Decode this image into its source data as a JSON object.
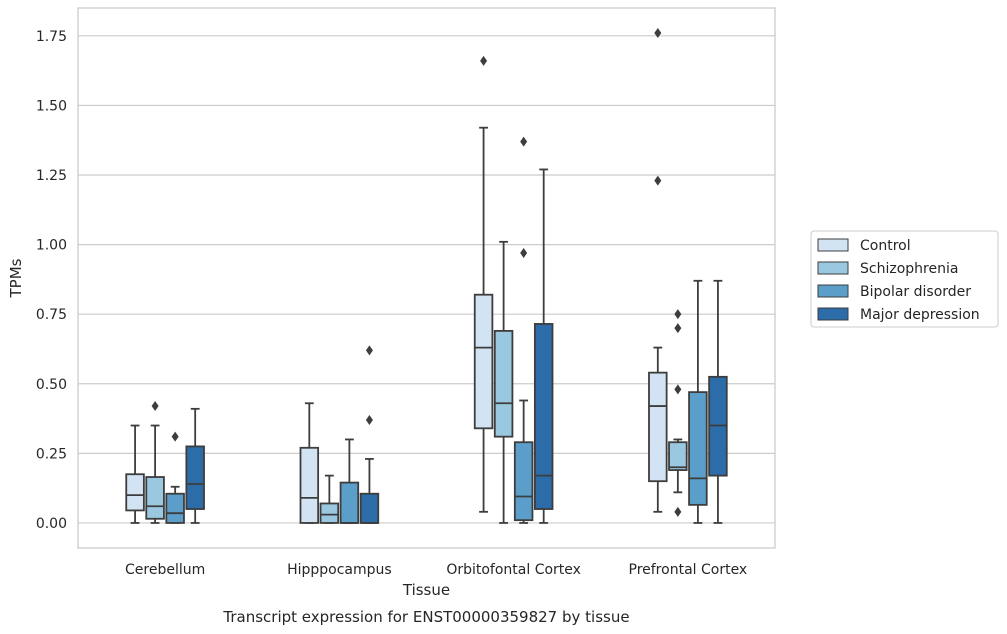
{
  "chart_data": {
    "type": "box",
    "title": "",
    "caption": "Transcript expression for ENST00000359827 by tissue",
    "xlabel": "Tissue",
    "ylabel": "TPMs",
    "ylim": [
      -0.09,
      1.85
    ],
    "yticks": [
      "0.00",
      "0.25",
      "0.50",
      "0.75",
      "1.00",
      "1.25",
      "1.50",
      "1.75"
    ],
    "grid": "horizontal",
    "legend_position": "right",
    "categories": [
      "Cerebellum",
      "Hipppocampus",
      "Orbitofontal Cortex",
      "Prefrontal Cortex"
    ],
    "series": [
      {
        "name": "Control",
        "color": "#d2e3f3",
        "boxes": [
          {
            "min": 0.0,
            "q1": 0.045,
            "median": 0.1,
            "q3": 0.175,
            "max": 0.35,
            "outliers": []
          },
          {
            "min": 0.0,
            "q1": 0.0,
            "median": 0.09,
            "q3": 0.27,
            "max": 0.43,
            "outliers": []
          },
          {
            "min": 0.04,
            "q1": 0.34,
            "median": 0.63,
            "q3": 0.82,
            "max": 1.42,
            "outliers": [
              1.66
            ]
          },
          {
            "min": 0.04,
            "q1": 0.15,
            "median": 0.42,
            "q3": 0.54,
            "max": 0.63,
            "outliers": [
              1.23,
              1.76
            ]
          }
        ]
      },
      {
        "name": "Schizophrenia",
        "color": "#9ac8e0",
        "boxes": [
          {
            "min": 0.0,
            "q1": 0.015,
            "median": 0.06,
            "q3": 0.165,
            "max": 0.35,
            "outliers": [
              0.42
            ]
          },
          {
            "min": 0.0,
            "q1": 0.0,
            "median": 0.03,
            "q3": 0.07,
            "max": 0.17,
            "outliers": []
          },
          {
            "min": 0.0,
            "q1": 0.31,
            "median": 0.43,
            "q3": 0.69,
            "max": 1.01,
            "outliers": []
          },
          {
            "min": 0.11,
            "q1": 0.19,
            "median": 0.2,
            "q3": 0.29,
            "max": 0.3,
            "outliers": [
              0.04,
              0.48,
              0.7,
              0.75
            ]
          }
        ]
      },
      {
        "name": "Bipolar disorder",
        "color": "#5a9ec9",
        "boxes": [
          {
            "min": 0.0,
            "q1": 0.0,
            "median": 0.035,
            "q3": 0.105,
            "max": 0.13,
            "outliers": [
              0.31
            ]
          },
          {
            "min": 0.0,
            "q1": 0.0,
            "median": 0.0,
            "q3": 0.145,
            "max": 0.3,
            "outliers": []
          },
          {
            "min": 0.0,
            "q1": 0.01,
            "median": 0.095,
            "q3": 0.29,
            "max": 0.44,
            "outliers": [
              0.97,
              1.37
            ]
          },
          {
            "min": 0.0,
            "q1": 0.065,
            "median": 0.16,
            "q3": 0.47,
            "max": 0.87,
            "outliers": []
          }
        ]
      },
      {
        "name": "Major depression",
        "color": "#2b6ca9",
        "boxes": [
          {
            "min": 0.0,
            "q1": 0.05,
            "median": 0.14,
            "q3": 0.275,
            "max": 0.41,
            "outliers": []
          },
          {
            "min": 0.0,
            "q1": 0.0,
            "median": 0.0,
            "q3": 0.105,
            "max": 0.23,
            "outliers": [
              0.37,
              0.62
            ]
          },
          {
            "min": 0.0,
            "q1": 0.05,
            "median": 0.17,
            "q3": 0.715,
            "max": 1.27,
            "outliers": []
          },
          {
            "min": 0.0,
            "q1": 0.17,
            "median": 0.35,
            "q3": 0.525,
            "max": 0.87,
            "outliers": []
          }
        ]
      }
    ]
  }
}
